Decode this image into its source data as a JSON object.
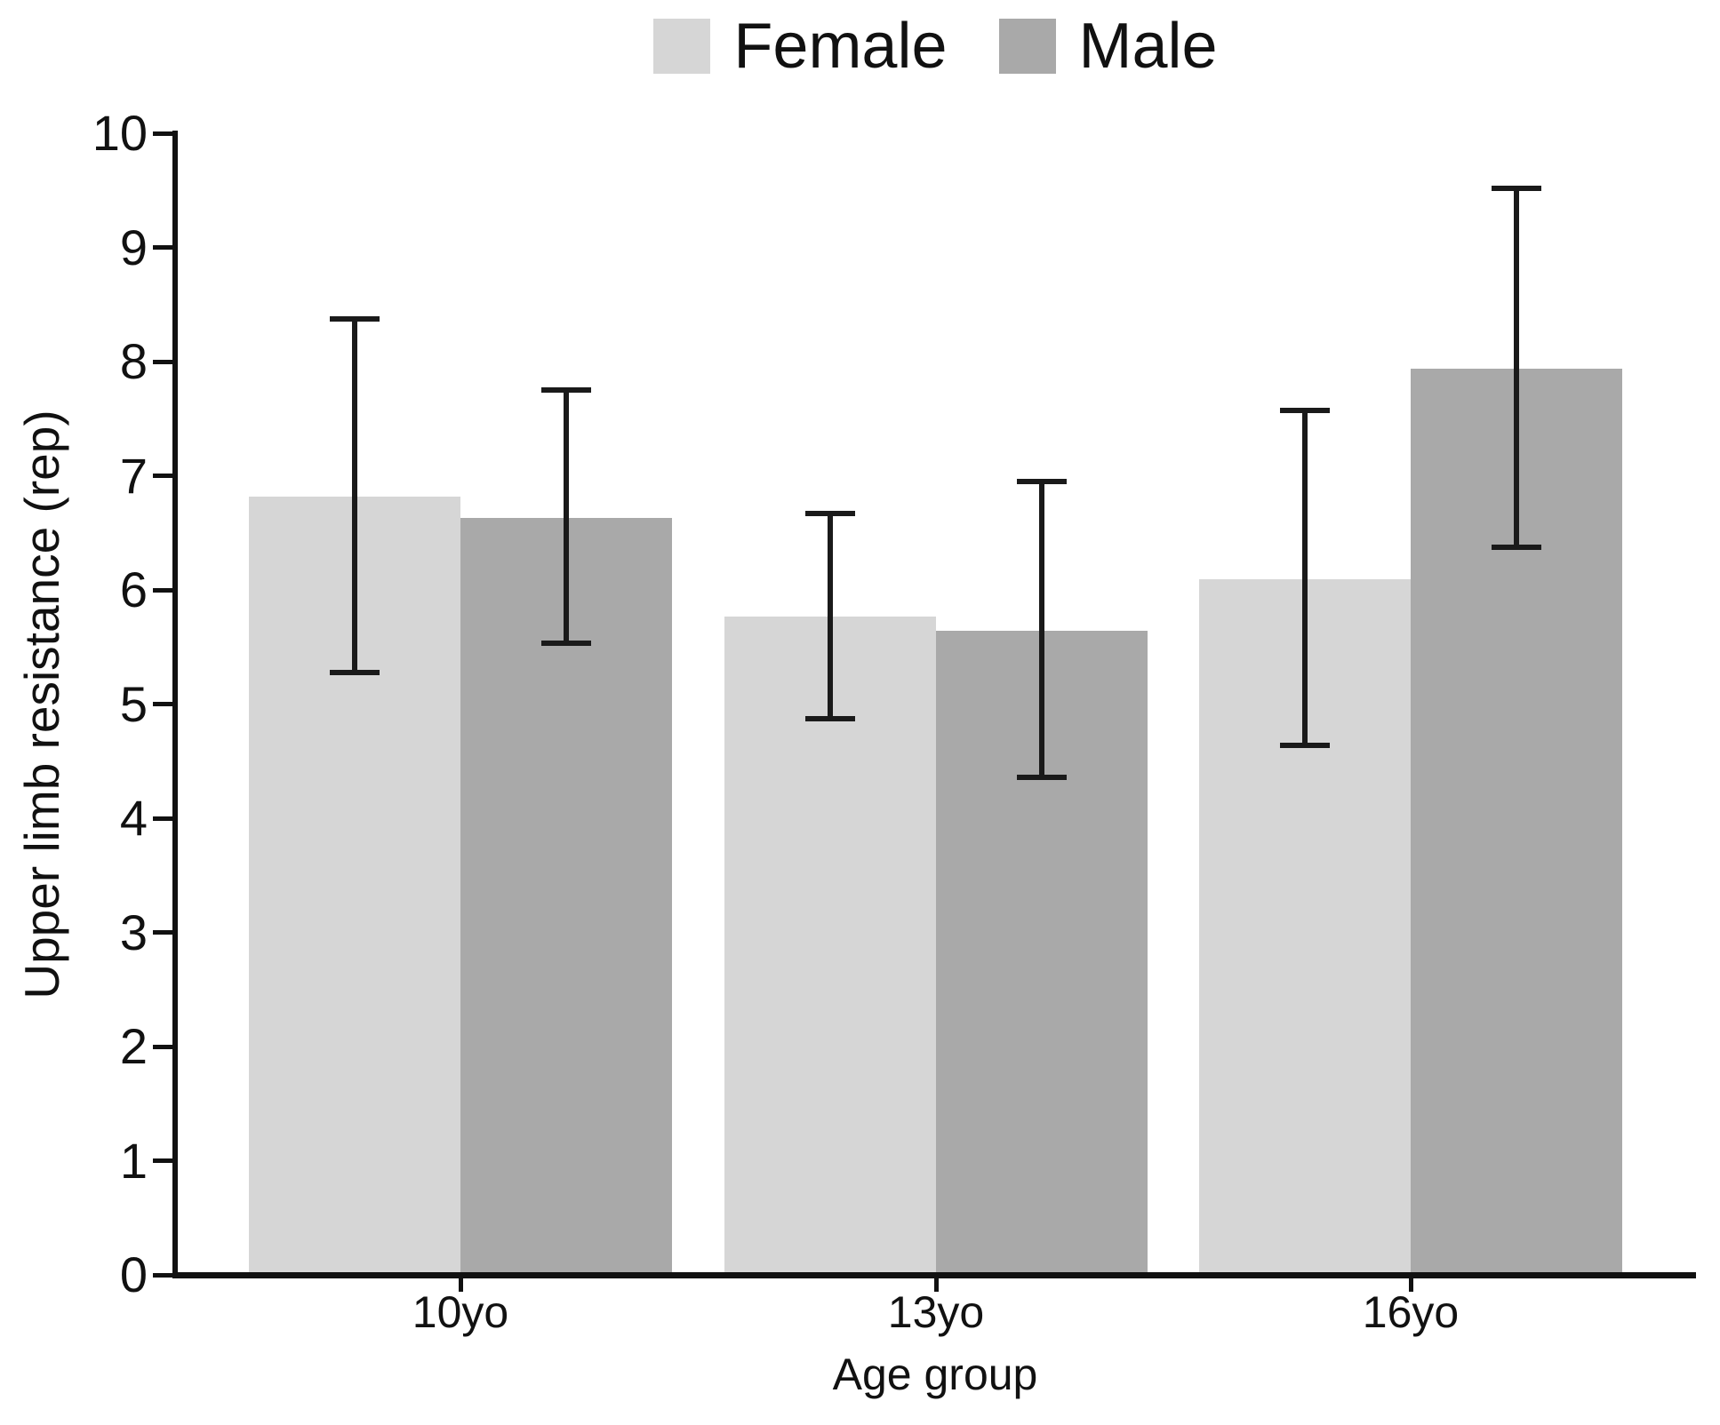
{
  "chart_data": {
    "type": "bar",
    "title": "",
    "categories": [
      "10yo",
      "13yo",
      "16yo"
    ],
    "series": [
      {
        "name": "Female",
        "color": "#d6d6d6",
        "values": [
          6.82,
          5.77,
          6.09
        ],
        "error_upper": [
          8.37,
          6.67,
          7.57
        ],
        "error_lower": [
          5.28,
          4.87,
          4.64
        ]
      },
      {
        "name": "Male",
        "color": "#a9a9a9",
        "values": [
          6.63,
          5.64,
          7.94
        ],
        "error_upper": [
          7.75,
          6.95,
          9.52
        ],
        "error_lower": [
          5.53,
          4.36,
          6.37
        ]
      }
    ],
    "xlabel": "Age group",
    "ylabel": "Upper limb resistance (rep)",
    "ylim": [
      0,
      10
    ],
    "yticks": [
      0,
      1,
      2,
      3,
      4,
      5,
      6,
      7,
      8,
      9,
      10
    ],
    "grid": false,
    "legend_position": "top-center",
    "axis_color": "#111111",
    "error_bar_color": "#1a1a1a",
    "background_color": "#ffffff"
  }
}
